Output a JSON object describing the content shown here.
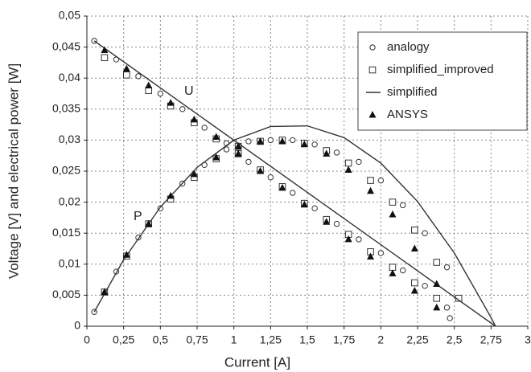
{
  "chart_data": {
    "type": "scatter",
    "x_label": "Current [A]",
    "y_label": "Voltage [V] and electrical power [W]",
    "annotations": [
      "U",
      "P"
    ],
    "xlim": [
      0,
      3
    ],
    "ylim": [
      0,
      0.05
    ],
    "xticks": [
      0,
      {
        "value": 0.25,
        "label": "0,25"
      },
      {
        "value": 0.5,
        "label": "0,5"
      },
      {
        "value": 0.75,
        "label": "0,75"
      },
      1,
      {
        "value": 1.25,
        "label": "1,25"
      },
      {
        "value": 1.5,
        "label": "1,5"
      },
      {
        "value": 1.75,
        "label": "1,75"
      },
      2,
      {
        "value": 2.25,
        "label": "2,25"
      },
      {
        "value": 2.5,
        "label": "2,5"
      },
      {
        "value": 2.75,
        "label": "2,75"
      },
      3
    ],
    "yticks": [
      0,
      {
        "value": 0.005,
        "label": "0,005"
      },
      {
        "value": 0.01,
        "label": "0,01"
      },
      {
        "value": 0.015,
        "label": "0,015"
      },
      {
        "value": 0.02,
        "label": "0,02"
      },
      {
        "value": 0.025,
        "label": "0,025"
      },
      {
        "value": 0.03,
        "label": "0,03"
      },
      {
        "value": 0.035,
        "label": "0,035"
      },
      {
        "value": 0.04,
        "label": "0,04"
      },
      {
        "value": 0.045,
        "label": "0,045"
      },
      {
        "value": 0.05,
        "label": "0,05"
      }
    ],
    "grid": true,
    "legend": "upper right",
    "series": [
      {
        "name": "analogy",
        "marker": "circle",
        "color": "#333333",
        "x": [
          0.05,
          0.2,
          0.35,
          0.5,
          0.65,
          0.8,
          0.95,
          1.1,
          1.25,
          1.4,
          1.55,
          1.7,
          1.85,
          2.0,
          2.15,
          2.3,
          2.45,
          2.47,
          0.05,
          0.2,
          0.35,
          0.5,
          0.65,
          0.8,
          0.95,
          1.1,
          1.25,
          1.4,
          1.55,
          1.7,
          1.85,
          2.0,
          2.15,
          2.3,
          2.45
        ],
        "values": [
          0.046,
          0.043,
          0.0403,
          0.0375,
          0.035,
          0.032,
          0.0295,
          0.0265,
          0.024,
          0.0215,
          0.019,
          0.0165,
          0.014,
          0.0118,
          0.009,
          0.0065,
          0.003,
          0.0013,
          0.0023,
          0.0088,
          0.0143,
          0.019,
          0.023,
          0.026,
          0.0285,
          0.0298,
          0.03,
          0.03,
          0.0293,
          0.028,
          0.0265,
          0.0235,
          0.0195,
          0.015,
          0.0095
        ]
      },
      {
        "name": "simplified_improved",
        "marker": "square",
        "color": "#333333",
        "x": [
          0.12,
          0.27,
          0.42,
          0.57,
          0.73,
          0.88,
          1.03,
          1.18,
          1.33,
          1.48,
          1.63,
          1.78,
          1.93,
          2.08,
          2.23,
          2.38,
          2.53,
          0.12,
          0.27,
          0.42,
          0.57,
          0.73,
          0.88,
          1.03,
          1.18,
          1.33,
          1.48,
          1.63,
          1.78,
          1.93,
          2.08,
          2.23,
          2.38
        ],
        "values": [
          0.0433,
          0.0405,
          0.038,
          0.0355,
          0.0328,
          0.0302,
          0.0278,
          0.0252,
          0.0225,
          0.0198,
          0.0172,
          0.0148,
          0.012,
          0.0095,
          0.007,
          0.0045,
          0.0045,
          0.0055,
          0.0113,
          0.0165,
          0.0205,
          0.024,
          0.027,
          0.029,
          0.0298,
          0.03,
          0.0295,
          0.0283,
          0.0263,
          0.0235,
          0.02,
          0.0155,
          0.0103
        ]
      },
      {
        "name": "simplified",
        "marker": "line",
        "color": "#333333",
        "x": [
          0.05,
          2.78,
          null,
          0.05,
          0.25,
          0.5,
          0.75,
          1.0,
          1.25,
          1.5,
          1.75,
          2.0,
          2.25,
          2.5,
          2.75,
          2.78
        ],
        "values": [
          0.046,
          0,
          null,
          0.0023,
          0.0107,
          0.0192,
          0.0256,
          0.03,
          0.0322,
          0.0323,
          0.0304,
          0.0263,
          0.0201,
          0.0118,
          0.0014,
          0
        ]
      },
      {
        "name": "ANSYS",
        "marker": "triangle",
        "color": "#111111",
        "x": [
          0.12,
          0.27,
          0.42,
          0.57,
          0.73,
          0.88,
          1.03,
          1.18,
          1.33,
          1.48,
          1.63,
          1.78,
          1.93,
          2.08,
          2.23,
          2.38,
          0.12,
          0.27,
          0.42,
          0.57,
          0.73,
          0.88,
          1.03,
          1.18,
          1.33,
          1.48,
          1.63,
          1.78,
          1.93,
          2.08,
          2.23,
          2.38
        ],
        "values": [
          0.0445,
          0.0415,
          0.0388,
          0.036,
          0.0333,
          0.0305,
          0.0278,
          0.025,
          0.0223,
          0.0196,
          0.0168,
          0.014,
          0.0112,
          0.0085,
          0.0057,
          0.003,
          0.0055,
          0.0115,
          0.0165,
          0.021,
          0.0245,
          0.0272,
          0.029,
          0.0298,
          0.0298,
          0.0293,
          0.0278,
          0.0252,
          0.0218,
          0.018,
          0.0125,
          0.0068
        ]
      }
    ]
  }
}
